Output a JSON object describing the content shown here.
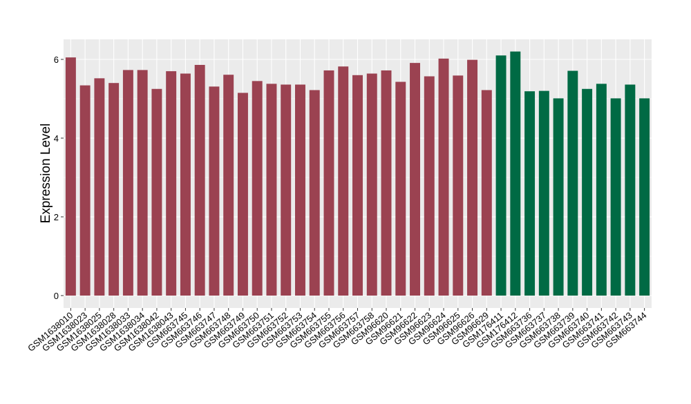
{
  "chart_data": {
    "type": "bar",
    "title": "",
    "xlabel": "",
    "ylabel": "Expression Level",
    "ylim": [
      0,
      6.5
    ],
    "yticks": [
      0,
      2,
      4,
      6
    ],
    "grid": true,
    "legend": "none",
    "colors": {
      "group1": "#9b4251",
      "group2": "#006a44",
      "panel_bg": "#ebebeb",
      "grid": "#ffffff",
      "text": "#000000"
    },
    "categories": [
      "GSM1638010",
      "GSM1638023",
      "GSM1638025",
      "GSM1638028",
      "GSM1638033",
      "GSM1638034",
      "GSM1638042",
      "GSM1638043",
      "GSM663745",
      "GSM663746",
      "GSM663747",
      "GSM663748",
      "GSM663749",
      "GSM663750",
      "GSM663751",
      "GSM663752",
      "GSM663753",
      "GSM663754",
      "GSM663755",
      "GSM663756",
      "GSM663757",
      "GSM663758",
      "GSM96620",
      "GSM96621",
      "GSM96622",
      "GSM96623",
      "GSM96624",
      "GSM96625",
      "GSM96626",
      "GSM96629",
      "GSM176411",
      "GSM176412",
      "GSM663736",
      "GSM663737",
      "GSM663738",
      "GSM663739",
      "GSM663740",
      "GSM663741",
      "GSM663742",
      "GSM663743",
      "GSM663744"
    ],
    "values": [
      6.05,
      5.34,
      5.52,
      5.4,
      5.73,
      5.73,
      5.25,
      5.7,
      5.64,
      5.86,
      5.31,
      5.61,
      5.15,
      5.45,
      5.38,
      5.36,
      5.36,
      5.22,
      5.72,
      5.82,
      5.6,
      5.64,
      5.72,
      5.43,
      5.91,
      5.57,
      6.02,
      5.59,
      5.99,
      5.22,
      6.1,
      6.2,
      5.19,
      5.2,
      5.01,
      5.71,
      5.25,
      5.38,
      5.01,
      5.36,
      5.01
    ],
    "groups": [
      "group1",
      "group1",
      "group1",
      "group1",
      "group1",
      "group1",
      "group1",
      "group1",
      "group1",
      "group1",
      "group1",
      "group1",
      "group1",
      "group1",
      "group1",
      "group1",
      "group1",
      "group1",
      "group1",
      "group1",
      "group1",
      "group1",
      "group1",
      "group1",
      "group1",
      "group1",
      "group1",
      "group1",
      "group1",
      "group1",
      "group2",
      "group2",
      "group2",
      "group2",
      "group2",
      "group2",
      "group2",
      "group2",
      "group2",
      "group2",
      "group2"
    ]
  }
}
